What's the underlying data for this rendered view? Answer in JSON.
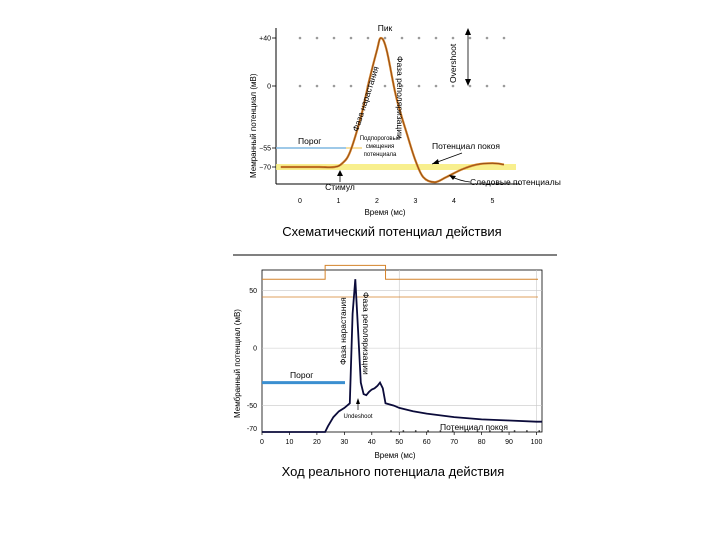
{
  "chart_data": [
    {
      "type": "line",
      "title": "Схематический потенциал действия",
      "xlabel": "Время (мс)",
      "ylabel": "Мемранный потенциал (мВ)",
      "xlim": [
        -0.5,
        5.5
      ],
      "x_ticks": [
        0,
        1,
        2,
        3,
        4,
        5
      ],
      "y_ticks": [
        {
          "value": 40,
          "label": "+40"
        },
        {
          "value": 0,
          "label": "0"
        },
        {
          "value": -55,
          "label": "−55"
        },
        {
          "value": -70,
          "label": "−70"
        }
      ],
      "grid": "dotted rows at +40 and 0",
      "threshold": {
        "value": -55,
        "label": "Порог"
      },
      "series": [
        {
          "values": [
            [
              -0.5,
              -70
            ],
            [
              0,
              -70
            ],
            [
              0.5,
              -70
            ],
            [
              0.9,
              -70
            ],
            [
              1.1,
              -67
            ],
            [
              1.3,
              -58
            ],
            [
              1.6,
              -25
            ],
            [
              1.8,
              5
            ],
            [
              2.0,
              30
            ],
            [
              2.1,
              40
            ],
            [
              2.25,
              30
            ],
            [
              2.5,
              -10
            ],
            [
              2.8,
              -45
            ],
            [
              3.0,
              -65
            ],
            [
              3.2,
              -78
            ],
            [
              3.5,
              -82
            ],
            [
              3.8,
              -78
            ],
            [
              4.2,
              -72
            ],
            [
              4.6,
              -68
            ],
            [
              5.0,
              -67
            ],
            [
              5.3,
              -68
            ]
          ]
        }
      ],
      "annotations": {
        "peak": "Пик",
        "rising": "Фаза нарастания",
        "repolarization": "Фаза реполяризации",
        "overshoot": "Overshoot",
        "subthreshold": [
          "Подпороговые",
          "смещения",
          "потенциала"
        ],
        "resting": "Потенциал покоя",
        "after": "Следовые потенциалы",
        "stimulus": "Стимул"
      }
    },
    {
      "type": "line",
      "title": "Ход реального потенциала действия",
      "xlabel": "Время (мс)",
      "ylabel": "Мембранный потенциал (мВ)",
      "xlim": [
        0,
        102
      ],
      "ylim": [
        -73,
        68
      ],
      "x_ticks": [
        0,
        10,
        20,
        30,
        40,
        50,
        60,
        70,
        80,
        90,
        100
      ],
      "y_ticks": [
        {
          "value": 50,
          "label": "50"
        },
        {
          "value": 0,
          "label": "0"
        },
        {
          "value": -50,
          "label": "-50"
        },
        {
          "value": -70,
          "label": "-70"
        }
      ],
      "threshold": {
        "value": -30,
        "label": "Порог"
      },
      "stimulus": {
        "baseline": 60,
        "high": 72,
        "on": 23,
        "off": 45
      },
      "series": [
        {
          "values": [
            [
              0,
              -73
            ],
            [
              23,
              -73
            ],
            [
              24,
              -68
            ],
            [
              26,
              -60
            ],
            [
              28,
              -55
            ],
            [
              30,
              -52
            ],
            [
              32,
              -48
            ],
            [
              33,
              30
            ],
            [
              34,
              60
            ],
            [
              35,
              15
            ],
            [
              36,
              -30
            ],
            [
              37,
              -40
            ],
            [
              38,
              -41
            ],
            [
              39,
              -38
            ],
            [
              40,
              -36
            ],
            [
              41,
              -35
            ],
            [
              42,
              -33
            ],
            [
              43,
              -30
            ],
            [
              44,
              -35
            ],
            [
              45,
              -48
            ],
            [
              48,
              -50
            ],
            [
              50,
              -52
            ],
            [
              55,
              -55
            ],
            [
              60,
              -57
            ],
            [
              70,
              -60
            ],
            [
              80,
              -62
            ],
            [
              90,
              -63
            ],
            [
              100,
              -64
            ],
            [
              102,
              -64
            ]
          ]
        }
      ],
      "annotations": {
        "rising": "Фаза нарастания",
        "repolarization": "Фаза реполяризации",
        "undershoot": "Undeshoot",
        "resting": "Потенциал покоя"
      }
    }
  ]
}
